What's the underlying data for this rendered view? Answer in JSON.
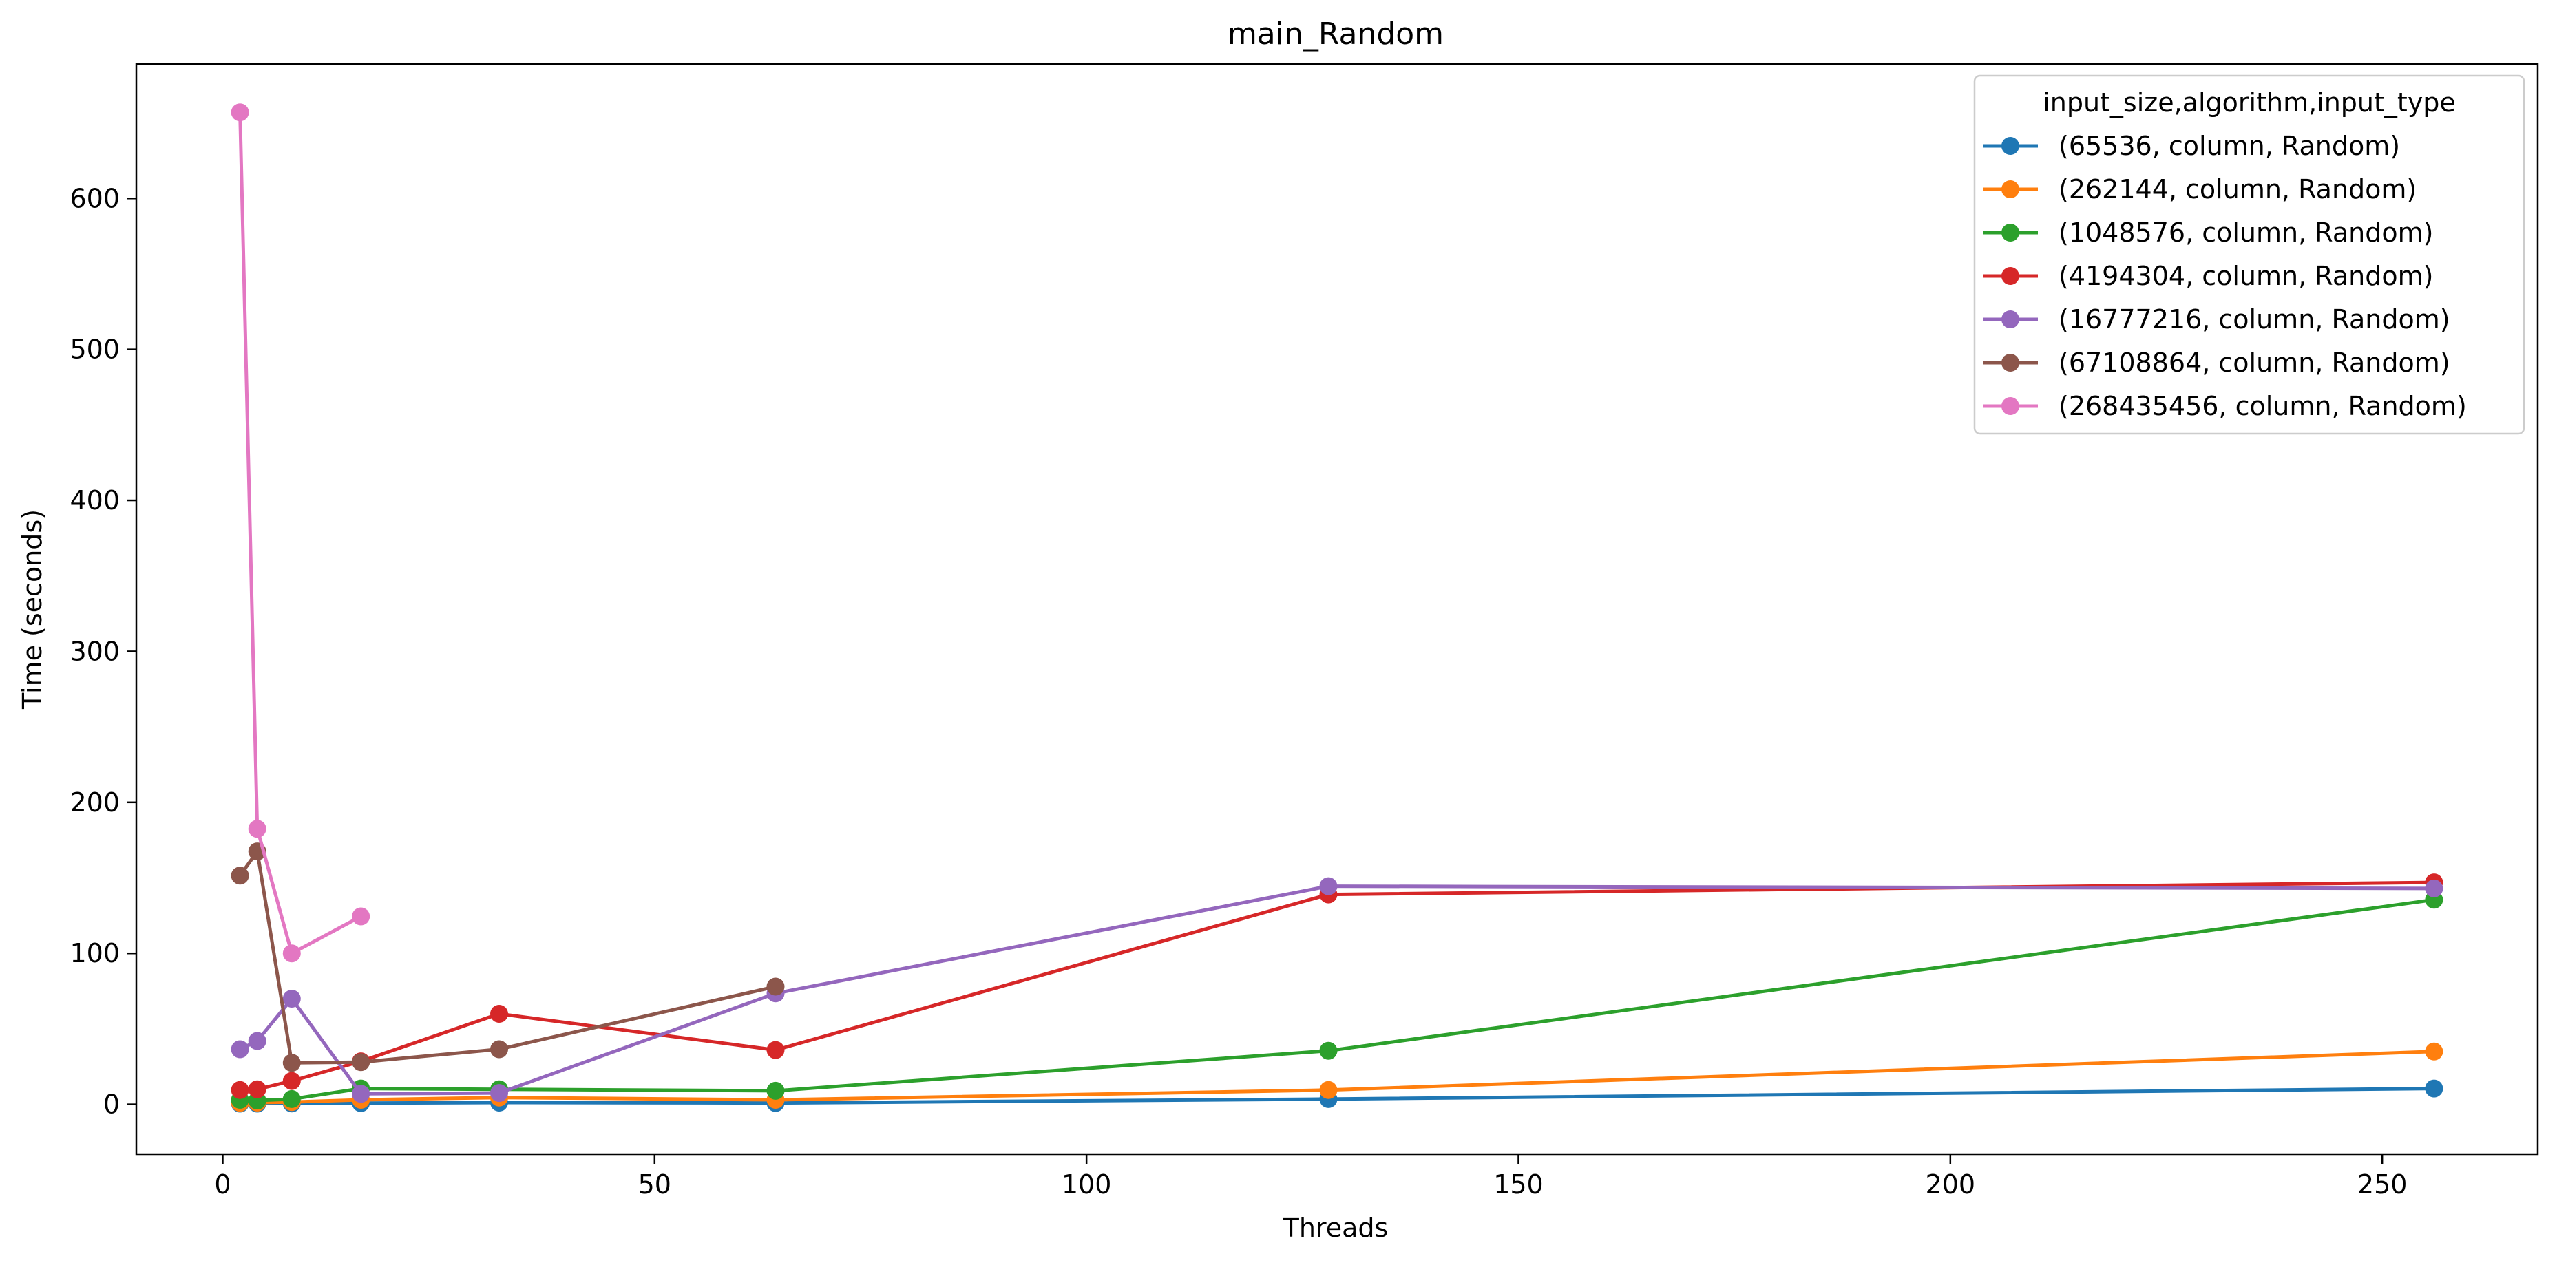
{
  "chart_data": {
    "type": "line",
    "title": "main_Random",
    "xlabel": "Threads",
    "ylabel": "Time (seconds)",
    "xlim": [
      -10,
      268
    ],
    "ylim": [
      -33,
      689
    ],
    "xticks": [
      0,
      50,
      100,
      150,
      200,
      250
    ],
    "yticks": [
      0,
      100,
      200,
      300,
      400,
      500,
      600
    ],
    "grid": false,
    "legend": {
      "title": "input_size,algorithm,input_type",
      "placement": "top-right"
    },
    "series": [
      {
        "name": "(65536, column, Random)",
        "color": "#1f77b4",
        "x": [
          2,
          4,
          8,
          16,
          32,
          64,
          128,
          256
        ],
        "y": [
          0.5,
          0.5,
          0.6,
          0.8,
          1.2,
          0.9,
          3.5,
          10.5
        ]
      },
      {
        "name": "(262144, column, Random)",
        "color": "#ff7f0e",
        "x": [
          2,
          4,
          8,
          16,
          32,
          64,
          128,
          256
        ],
        "y": [
          1.0,
          1.2,
          1.5,
          3.0,
          4.5,
          3.0,
          9.5,
          35.0
        ]
      },
      {
        "name": "(1048576, column, Random)",
        "color": "#2ca02c",
        "x": [
          2,
          4,
          8,
          16,
          32,
          64,
          128,
          256
        ],
        "y": [
          3.0,
          2.5,
          3.5,
          10.5,
          10.0,
          9.0,
          35.5,
          135.5
        ]
      },
      {
        "name": "(4194304, column, Random)",
        "color": "#d62728",
        "x": [
          2,
          4,
          8,
          16,
          32,
          64,
          128,
          256
        ],
        "y": [
          9.5,
          10.0,
          15.5,
          28.5,
          60.0,
          36.0,
          139.0,
          147.0
        ]
      },
      {
        "name": "(16777216, column, Random)",
        "color": "#9467bd",
        "x": [
          2,
          4,
          8,
          16,
          32,
          64,
          128,
          256
        ],
        "y": [
          36.5,
          42.0,
          70.0,
          7.0,
          7.5,
          73.5,
          144.5,
          143.0
        ]
      },
      {
        "name": "(67108864, column, Random)",
        "color": "#8c564b",
        "x": [
          2,
          4,
          8,
          16,
          32,
          64
        ],
        "y": [
          151.5,
          167.5,
          27.5,
          28.0,
          36.5,
          78.0
        ]
      },
      {
        "name": "(268435456, column, Random)",
        "color": "#e377c2",
        "x": [
          2,
          4,
          8,
          16
        ],
        "y": [
          657.0,
          182.5,
          100.0,
          124.5
        ]
      }
    ]
  }
}
